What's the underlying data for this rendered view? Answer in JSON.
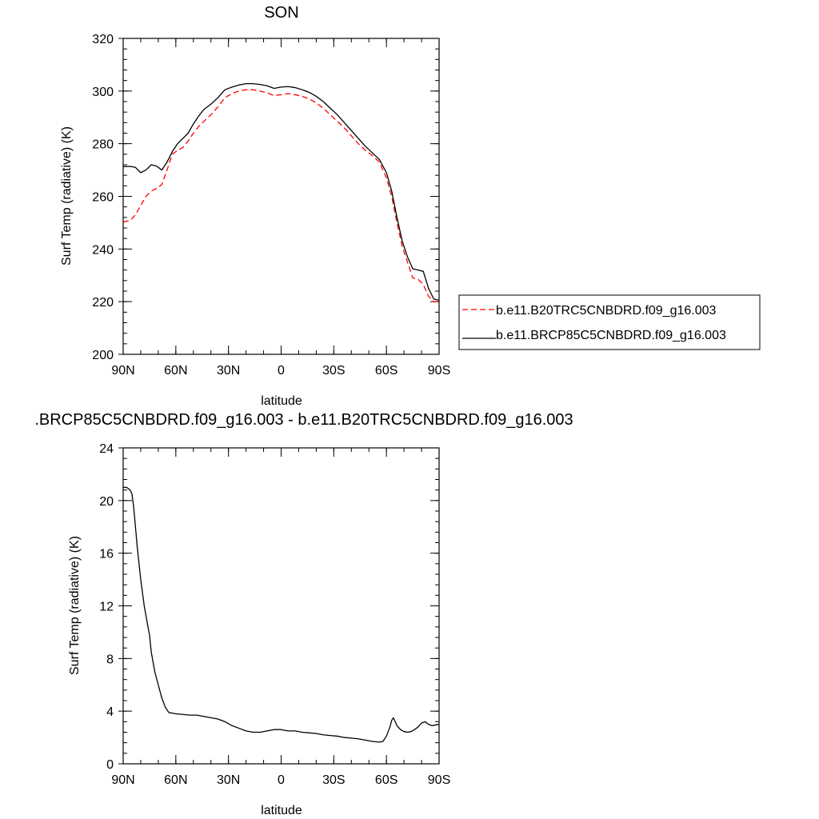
{
  "chart_data": [
    {
      "type": "line",
      "title": "SON",
      "xlabel": "latitude",
      "ylabel": "Surf Temp (radiative) (K)",
      "xlim": [
        90,
        -90
      ],
      "ylim": [
        200,
        320
      ],
      "x_ticks": [
        90,
        60,
        30,
        0,
        -30,
        -60,
        -90
      ],
      "x_tick_labels": [
        "90N",
        "60N",
        "30N",
        "0",
        "30S",
        "60S",
        "90S"
      ],
      "y_ticks": [
        200,
        220,
        240,
        260,
        280,
        300,
        320
      ],
      "y_tick_labels": [
        "200",
        "220",
        "240",
        "260",
        "280",
        "300",
        "320"
      ],
      "legend_position": "outside-right",
      "series": [
        {
          "name": "b.e11.B20TRC5CNBDRD.f09_g16.003",
          "color": "#ff0000",
          "dash": "dashed",
          "x": [
            90,
            86,
            83,
            80,
            77,
            74,
            71,
            68,
            65,
            62,
            59,
            56,
            53,
            50,
            47,
            44,
            40,
            36,
            32,
            28,
            24,
            20,
            16,
            12,
            8,
            4,
            0,
            -4,
            -8,
            -12,
            -16,
            -20,
            -24,
            -28,
            -32,
            -36,
            -40,
            -44,
            -48,
            -52,
            -56,
            -60,
            -63,
            -66,
            -69,
            -72,
            -75,
            -78,
            -81,
            -84,
            -87,
            -90
          ],
          "y": [
            250.3,
            250.8,
            253,
            256.5,
            260,
            262,
            263,
            264.5,
            270,
            276,
            277.5,
            278.5,
            281,
            284,
            286.5,
            288.5,
            291,
            294,
            297.5,
            299,
            300,
            300.5,
            300.5,
            300,
            299.3,
            298.3,
            298.6,
            299,
            298.6,
            298,
            297,
            295.5,
            293.5,
            291,
            288.5,
            286,
            283,
            280,
            277.5,
            275.5,
            273,
            267,
            260,
            250,
            241,
            235,
            229,
            228.5,
            226.5,
            222,
            220,
            220
          ]
        },
        {
          "name": "b.e11.BRCP85C5CNBDRD.f09_g16.003",
          "color": "#000000",
          "dash": "solid",
          "x": [
            90,
            86,
            83,
            80,
            77,
            74,
            71,
            68,
            65,
            62,
            59,
            56,
            53,
            50,
            47,
            44,
            40,
            36,
            32,
            28,
            24,
            20,
            16,
            12,
            8,
            4,
            0,
            -4,
            -8,
            -12,
            -16,
            -20,
            -24,
            -28,
            -32,
            -36,
            -40,
            -44,
            -48,
            -52,
            -56,
            -60,
            -63,
            -66,
            -69,
            -72,
            -75,
            -78,
            -81,
            -84,
            -87,
            -90
          ],
          "y": [
            271.3,
            271.4,
            271,
            269,
            270,
            272,
            271.5,
            270,
            273,
            277,
            280,
            282,
            284,
            287.5,
            290.5,
            293,
            295,
            297.5,
            300.5,
            301.5,
            302.3,
            302.8,
            302.8,
            302.5,
            302,
            301,
            301.5,
            301.7,
            301.3,
            300.5,
            299.5,
            298,
            296,
            293.5,
            291,
            288,
            285,
            282,
            279,
            276.5,
            274,
            269,
            262,
            252,
            243,
            237,
            232.5,
            232,
            231.5,
            225,
            221,
            220.5
          ]
        }
      ]
    },
    {
      "type": "line",
      "title": ".BRCP85C5CNBDRD.f09_g16.003 - b.e11.B20TRC5CNBDRD.f09_g16.003",
      "xlabel": "latitude",
      "ylabel": "Surf Temp (radiative) (K)",
      "xlim": [
        90,
        -90
      ],
      "ylim": [
        0,
        24
      ],
      "x_ticks": [
        90,
        60,
        30,
        0,
        -30,
        -60,
        -90
      ],
      "x_tick_labels": [
        "90N",
        "60N",
        "30N",
        "0",
        "30S",
        "60S",
        "90S"
      ],
      "y_ticks": [
        0,
        4,
        8,
        12,
        16,
        20,
        24
      ],
      "y_tick_labels": [
        "0",
        "4",
        "8",
        "12",
        "16",
        "20",
        "24"
      ],
      "series": [
        {
          "color": "#000000",
          "dash": "solid",
          "x": [
            90,
            88,
            86,
            85,
            84,
            83,
            82,
            80,
            78,
            76,
            75,
            74,
            72,
            70,
            68,
            66,
            64,
            62,
            60,
            56,
            52,
            48,
            44,
            40,
            36,
            32,
            28,
            24,
            20,
            16,
            12,
            8,
            4,
            0,
            -4,
            -8,
            -12,
            -16,
            -20,
            -24,
            -28,
            -32,
            -36,
            -40,
            -44,
            -48,
            -52,
            -56,
            -58,
            -60,
            -62,
            -63,
            -64,
            -65,
            -66,
            -68,
            -70,
            -72,
            -74,
            -76,
            -78,
            -80,
            -82,
            -84,
            -86,
            -88,
            -90
          ],
          "y": [
            21,
            21,
            20.8,
            20.5,
            19.5,
            18,
            16.5,
            14,
            12,
            10.5,
            9.8,
            8.5,
            7,
            6,
            5,
            4.3,
            3.9,
            3.85,
            3.8,
            3.75,
            3.7,
            3.7,
            3.6,
            3.5,
            3.4,
            3.2,
            2.9,
            2.7,
            2.5,
            2.4,
            2.4,
            2.5,
            2.6,
            2.6,
            2.5,
            2.5,
            2.4,
            2.35,
            2.3,
            2.2,
            2.15,
            2.1,
            2.0,
            1.95,
            1.9,
            1.8,
            1.7,
            1.65,
            1.7,
            2.1,
            2.8,
            3.3,
            3.5,
            3.2,
            2.9,
            2.6,
            2.45,
            2.4,
            2.45,
            2.6,
            2.8,
            3.1,
            3.2,
            3.0,
            2.9,
            2.95,
            3.0
          ]
        }
      ]
    }
  ]
}
